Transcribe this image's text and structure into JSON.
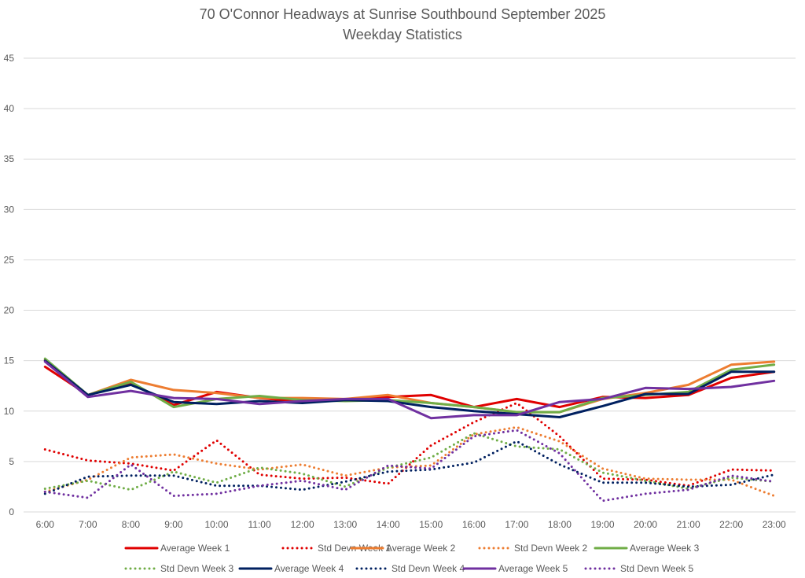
{
  "chart_data": {
    "type": "line",
    "title": "70 O'Connor Headways at Sunrise Southbound September 2025",
    "subtitle": "Weekday Statistics",
    "xlabel": "",
    "ylabel": "",
    "ylim": [
      0,
      45
    ],
    "yticks": [
      0,
      5,
      10,
      15,
      20,
      25,
      30,
      35,
      40,
      45
    ],
    "grid": true,
    "legend_position": "bottom",
    "categories": [
      "6:00",
      "7:00",
      "8:00",
      "9:00",
      "10:00",
      "11:00",
      "12:00",
      "13:00",
      "14:00",
      "15:00",
      "16:00",
      "17:00",
      "18:00",
      "19:00",
      "20:00",
      "21:00",
      "22:00",
      "23:00"
    ],
    "series": [
      {
        "name": "Average Week 1",
        "color": "#e00000",
        "style": "solid",
        "values": [
          14.4,
          11.6,
          12.8,
          10.6,
          11.9,
          11.3,
          10.9,
          11.1,
          11.4,
          11.6,
          10.4,
          11.2,
          10.4,
          11.4,
          11.3,
          11.6,
          13.3,
          13.9
        ]
      },
      {
        "name": "Std Devn Week 1",
        "color": "#e00000",
        "style": "dotted",
        "values": [
          6.2,
          5.1,
          4.8,
          4.1,
          7.1,
          3.7,
          3.3,
          3.4,
          2.8,
          6.6,
          8.9,
          10.8,
          7.5,
          3.3,
          3.2,
          2.6,
          4.2,
          4.1
        ]
      },
      {
        "name": "Average Week 2",
        "color": "#ed7d31",
        "style": "solid",
        "values": [
          15.1,
          11.6,
          13.1,
          12.1,
          11.8,
          11.3,
          11.3,
          11.2,
          11.6,
          10.8,
          10.4,
          9.9,
          9.9,
          11.2,
          11.8,
          12.6,
          14.6,
          14.9
        ]
      },
      {
        "name": "Std Devn Week 2",
        "color": "#ed7d31",
        "style": "dotted",
        "values": [
          2.0,
          3.2,
          5.4,
          5.7,
          4.8,
          4.2,
          4.7,
          3.6,
          4.4,
          4.6,
          7.7,
          8.4,
          7.0,
          4.3,
          3.3,
          3.2,
          3.2,
          1.6
        ]
      },
      {
        "name": "Average Week 3",
        "color": "#70ad47",
        "style": "solid",
        "values": [
          15.2,
          11.6,
          12.9,
          10.4,
          11.2,
          11.5,
          11.1,
          11.0,
          11.1,
          10.8,
          10.4,
          9.9,
          9.9,
          11.3,
          11.6,
          11.9,
          14.1,
          14.6
        ]
      },
      {
        "name": "Std Devn Week 3",
        "color": "#70ad47",
        "style": "dotted",
        "values": [
          2.3,
          3.1,
          2.2,
          4.0,
          2.9,
          4.4,
          3.8,
          2.5,
          4.4,
          5.4,
          7.8,
          6.5,
          6.2,
          3.9,
          3.1,
          2.3,
          3.4,
          3.0
        ]
      },
      {
        "name": "Average Week 4",
        "color": "#002060",
        "style": "solid",
        "values": [
          15.0,
          11.6,
          12.6,
          10.9,
          10.7,
          11.0,
          10.8,
          11.1,
          11.0,
          10.4,
          10.0,
          9.7,
          9.4,
          10.5,
          11.7,
          11.7,
          13.9,
          13.9
        ]
      },
      {
        "name": "Std Devn Week 4",
        "color": "#002060",
        "style": "dotted",
        "values": [
          1.8,
          3.5,
          3.6,
          3.6,
          2.6,
          2.6,
          2.2,
          3.0,
          4.0,
          4.2,
          4.9,
          7.0,
          4.7,
          2.9,
          2.9,
          2.5,
          2.7,
          3.7
        ]
      },
      {
        "name": "Average Week 5",
        "color": "#7030a0",
        "style": "solid",
        "values": [
          14.9,
          11.4,
          12.0,
          11.3,
          11.2,
          10.7,
          11.0,
          11.2,
          11.2,
          9.3,
          9.6,
          9.6,
          10.9,
          11.2,
          12.3,
          12.2,
          12.4,
          13.0
        ]
      },
      {
        "name": "Std Devn Week 5",
        "color": "#7030a0",
        "style": "dotted",
        "values": [
          2.0,
          1.4,
          4.7,
          1.6,
          1.8,
          2.6,
          3.1,
          2.2,
          4.6,
          4.3,
          7.5,
          8.1,
          5.8,
          1.1,
          1.8,
          2.2,
          3.6,
          3.0
        ]
      }
    ]
  }
}
